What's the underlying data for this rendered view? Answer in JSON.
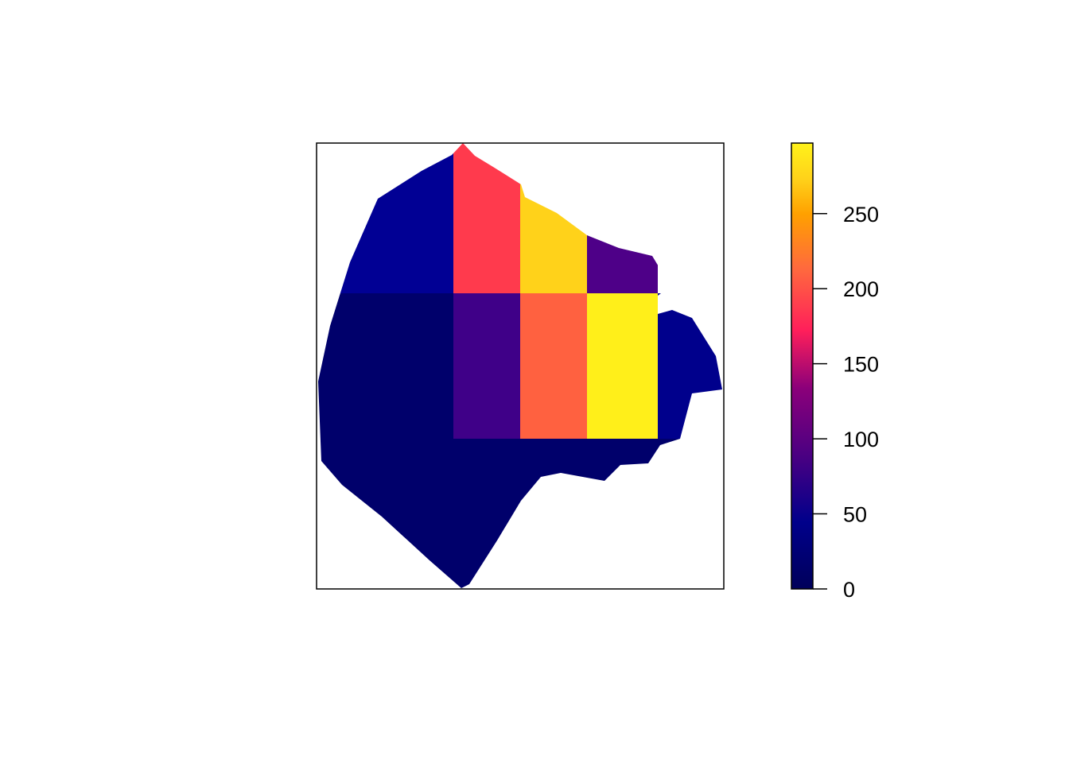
{
  "chart_data": {
    "type": "heatmap",
    "title": "",
    "xlabel": "",
    "ylabel": "",
    "colorscale": {
      "name": "plasma",
      "range": [
        0,
        297
      ],
      "stops": [
        "#0d0887",
        "#00008b",
        "#4b0082",
        "#800080",
        "#ff1f5a",
        "#ff6a3d",
        "#ffa000",
        "#ffd21a",
        "#ffef1a"
      ],
      "ticks": [
        {
          "value": 0,
          "label": "0"
        },
        {
          "value": 50,
          "label": "50"
        },
        {
          "value": 100,
          "label": "100"
        },
        {
          "value": 150,
          "label": "150"
        },
        {
          "value": 200,
          "label": "200"
        },
        {
          "value": 250,
          "label": "250"
        }
      ]
    },
    "cells": [
      {
        "row": 0,
        "col": 0,
        "value": 25,
        "color": "#010094"
      },
      {
        "row": 0,
        "col": 1,
        "value": 190,
        "color": "#ff3a4d"
      },
      {
        "row": 0,
        "col": 2,
        "value": 265,
        "color": "#ffd21a"
      },
      {
        "row": 0,
        "col": 3,
        "value": 60,
        "color": "#4e0088"
      },
      {
        "row": 1,
        "col": 0,
        "value": 0,
        "color": "#00006b"
      },
      {
        "row": 1,
        "col": 1,
        "value": 50,
        "color": "#3f0088"
      },
      {
        "row": 1,
        "col": 2,
        "value": 215,
        "color": "#ff6140"
      },
      {
        "row": 1,
        "col": 3,
        "value": 297,
        "color": "#ffef1a"
      },
      {
        "row": 1,
        "col": 4,
        "value": 20,
        "color": "#00008c"
      },
      {
        "row": 2,
        "col": 0,
        "value": 0,
        "color": "#00006b"
      }
    ]
  }
}
